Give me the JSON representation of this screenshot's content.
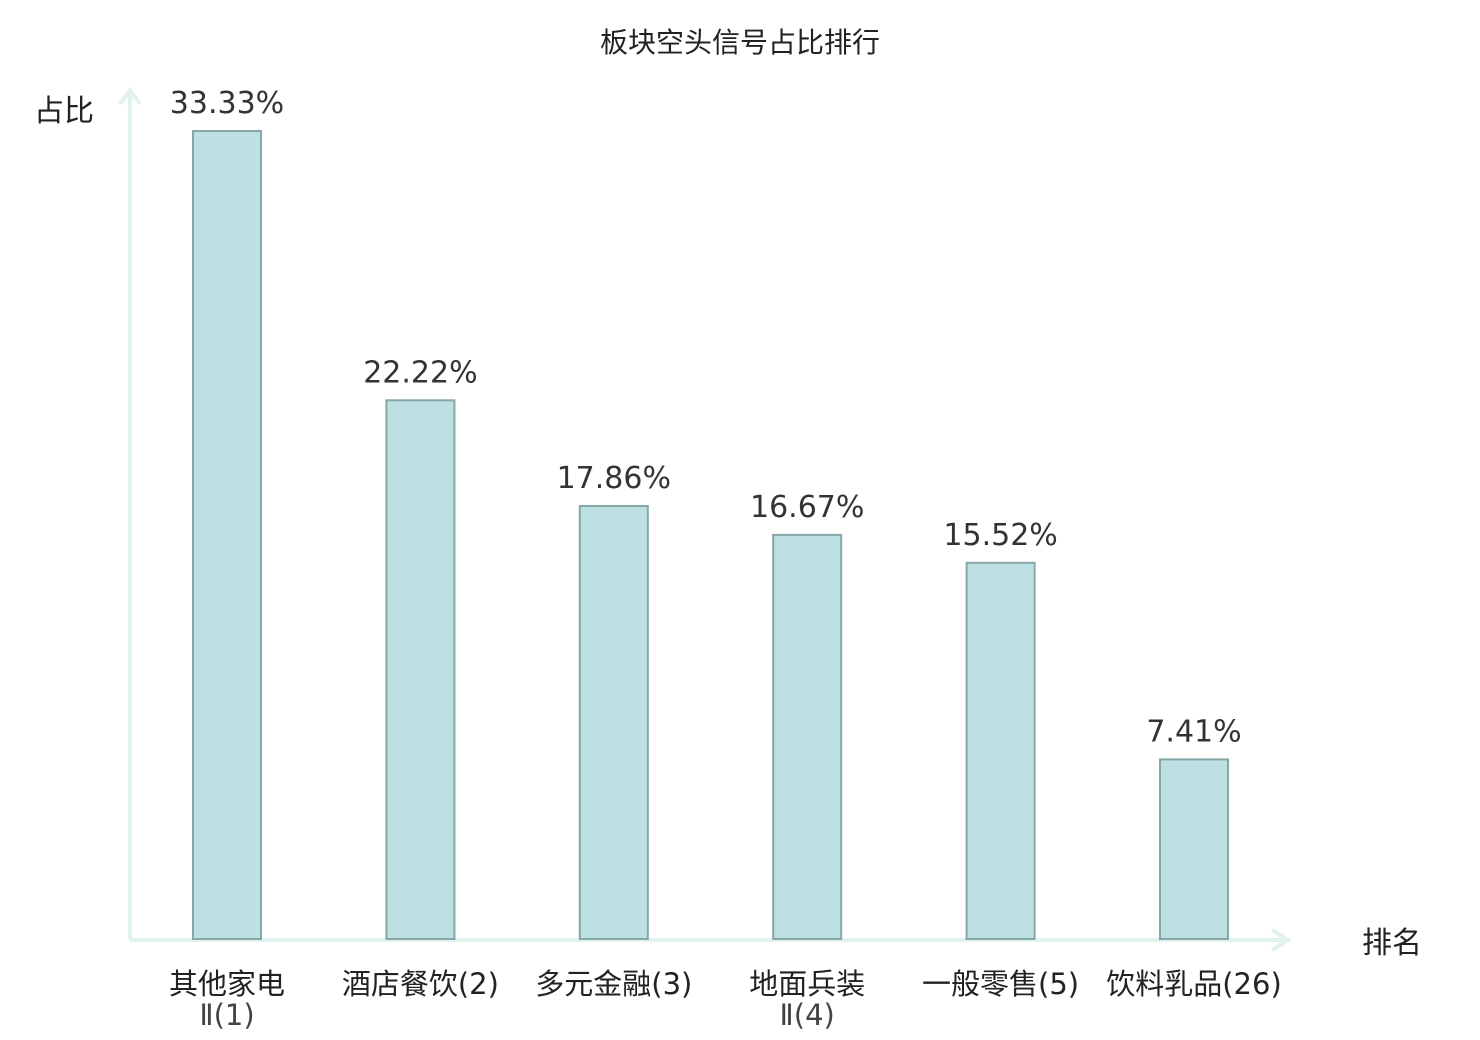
{
  "chart_data": {
    "type": "bar",
    "title": "板块空头信号占比排行",
    "ylabel": "占比",
    "xlabel": "排名",
    "categories": [
      {
        "name": "其他家电",
        "sub": "Ⅱ(1)",
        "highlight": false
      },
      {
        "name": "酒店餐饮(2)",
        "sub": "",
        "highlight": false
      },
      {
        "name": "多元金融(3)",
        "sub": "",
        "highlight": false
      },
      {
        "name": "地面兵装",
        "sub": "Ⅱ(4)",
        "highlight": false
      },
      {
        "name": "一般零售(5)",
        "sub": "",
        "highlight": false
      },
      {
        "name": "饮料乳品(26)",
        "sub": "",
        "highlight": true
      }
    ],
    "values": [
      33.33,
      22.22,
      17.86,
      16.67,
      15.52,
      7.41
    ],
    "value_labels": [
      "33.33%",
      "22.22%",
      "17.86%",
      "16.67%",
      "15.52%",
      "7.41%"
    ],
    "ylim": [
      0,
      33.33
    ],
    "grid": false,
    "legend": "none",
    "colors": {
      "bar_fill": "#bde0e3",
      "bar_stroke": "#86a6a8",
      "axis": "#e1f2ef",
      "highlight_text": "#e02020"
    }
  }
}
